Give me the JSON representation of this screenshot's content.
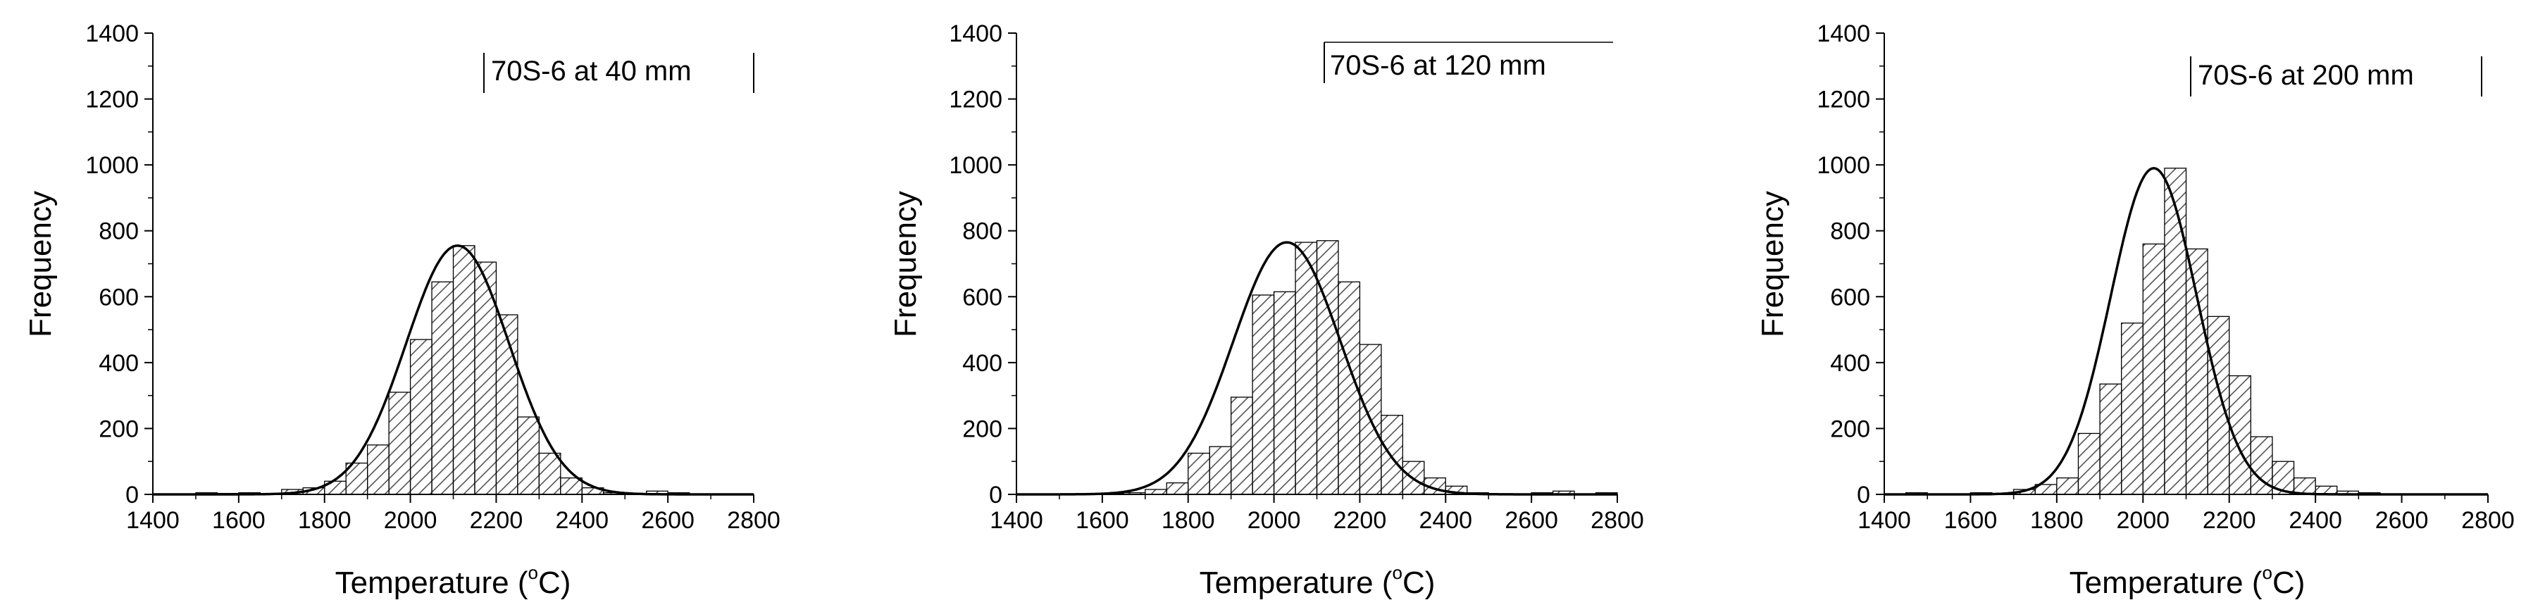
{
  "colors": {
    "background": "#ffffff",
    "ink": "#000000",
    "hatch": "#555555"
  },
  "figure_title": "",
  "chart_data": [
    {
      "type": "bar",
      "subtype": "histogram-with-normal-fit",
      "legend_label": "70S-6 at 40 mm",
      "legend_position": "top-right",
      "xlabel": "Temperature (",
      "xlabel_sup": "o",
      "xlabel_end": "C)",
      "ylabel": "Frequency",
      "xlim": [
        1400,
        2800
      ],
      "ylim": [
        0,
        1400
      ],
      "xticks": [
        "1400",
        "1600",
        "1800",
        "2000",
        "2200",
        "2400",
        "2600",
        "2800"
      ],
      "yticks": [
        "0",
        "200",
        "400",
        "600",
        "800",
        "1000",
        "1200",
        "1400"
      ],
      "bin_width": 50,
      "bins": [
        {
          "x": 1500,
          "y": 5
        },
        {
          "x": 1550,
          "y": 3
        },
        {
          "x": 1600,
          "y": 5
        },
        {
          "x": 1650,
          "y": 3
        },
        {
          "x": 1700,
          "y": 15
        },
        {
          "x": 1750,
          "y": 20
        },
        {
          "x": 1800,
          "y": 40
        },
        {
          "x": 1850,
          "y": 95
        },
        {
          "x": 1900,
          "y": 150
        },
        {
          "x": 1950,
          "y": 310
        },
        {
          "x": 2000,
          "y": 470
        },
        {
          "x": 2050,
          "y": 645
        },
        {
          "x": 2100,
          "y": 755
        },
        {
          "x": 2150,
          "y": 705
        },
        {
          "x": 2200,
          "y": 545
        },
        {
          "x": 2250,
          "y": 235
        },
        {
          "x": 2300,
          "y": 125
        },
        {
          "x": 2350,
          "y": 50
        },
        {
          "x": 2400,
          "y": 20
        },
        {
          "x": 2450,
          "y": 5
        },
        {
          "x": 2550,
          "y": 10
        },
        {
          "x": 2600,
          "y": 5
        }
      ],
      "fit": {
        "type": "normal",
        "mean": 2110,
        "sd": 120,
        "peak": 755
      }
    },
    {
      "type": "bar",
      "subtype": "histogram-with-normal-fit",
      "legend_label": "70S-6 at 120 mm",
      "legend_position": "top-right",
      "xlabel": "Temperature (",
      "xlabel_sup": "o",
      "xlabel_end": "C)",
      "ylabel": "Frequency",
      "xlim": [
        1400,
        2800
      ],
      "ylim": [
        0,
        1400
      ],
      "xticks": [
        "1400",
        "1600",
        "1800",
        "2000",
        "2200",
        "2400",
        "2600",
        "2800"
      ],
      "yticks": [
        "0",
        "200",
        "400",
        "600",
        "800",
        "1000",
        "1200",
        "1400"
      ],
      "bin_width": 50,
      "bins": [
        {
          "x": 1600,
          "y": 3
        },
        {
          "x": 1650,
          "y": 5
        },
        {
          "x": 1700,
          "y": 15
        },
        {
          "x": 1750,
          "y": 35
        },
        {
          "x": 1800,
          "y": 125
        },
        {
          "x": 1850,
          "y": 145
        },
        {
          "x": 1900,
          "y": 295
        },
        {
          "x": 1950,
          "y": 605
        },
        {
          "x": 2000,
          "y": 615
        },
        {
          "x": 2050,
          "y": 765
        },
        {
          "x": 2100,
          "y": 770
        },
        {
          "x": 2150,
          "y": 645
        },
        {
          "x": 2200,
          "y": 455
        },
        {
          "x": 2250,
          "y": 240
        },
        {
          "x": 2300,
          "y": 100
        },
        {
          "x": 2350,
          "y": 50
        },
        {
          "x": 2400,
          "y": 25
        },
        {
          "x": 2450,
          "y": 5
        },
        {
          "x": 2600,
          "y": 5
        },
        {
          "x": 2650,
          "y": 10
        },
        {
          "x": 2750,
          "y": 5
        }
      ],
      "fit": {
        "type": "normal",
        "mean": 2030,
        "sd": 125,
        "peak": 765
      }
    },
    {
      "type": "bar",
      "subtype": "histogram-with-normal-fit",
      "legend_label": "70S-6 at 200 mm",
      "legend_position": "top-right",
      "xlabel": "Temperature (",
      "xlabel_sup": "o",
      "xlabel_end": "C)",
      "ylabel": "Frequency",
      "xlim": [
        1400,
        2800
      ],
      "ylim": [
        0,
        1400
      ],
      "xticks": [
        "1400",
        "1600",
        "1800",
        "2000",
        "2200",
        "2400",
        "2600",
        "2800"
      ],
      "yticks": [
        "0",
        "200",
        "400",
        "600",
        "800",
        "1000",
        "1200",
        "1400"
      ],
      "bin_width": 50,
      "bins": [
        {
          "x": 1450,
          "y": 5
        },
        {
          "x": 1600,
          "y": 5
        },
        {
          "x": 1700,
          "y": 15
        },
        {
          "x": 1750,
          "y": 30
        },
        {
          "x": 1800,
          "y": 50
        },
        {
          "x": 1850,
          "y": 185
        },
        {
          "x": 1900,
          "y": 335
        },
        {
          "x": 1950,
          "y": 520
        },
        {
          "x": 2000,
          "y": 760
        },
        {
          "x": 2050,
          "y": 990
        },
        {
          "x": 2100,
          "y": 745
        },
        {
          "x": 2150,
          "y": 540
        },
        {
          "x": 2200,
          "y": 360
        },
        {
          "x": 2250,
          "y": 175
        },
        {
          "x": 2300,
          "y": 100
        },
        {
          "x": 2350,
          "y": 50
        },
        {
          "x": 2400,
          "y": 25
        },
        {
          "x": 2450,
          "y": 10
        },
        {
          "x": 2500,
          "y": 5
        }
      ],
      "fit": {
        "type": "normal",
        "mean": 2025,
        "sd": 100,
        "peak": 990
      }
    }
  ]
}
